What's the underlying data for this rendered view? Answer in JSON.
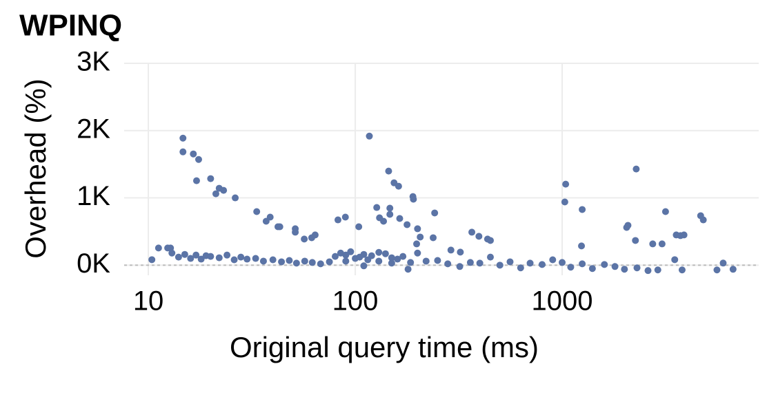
{
  "chart_data": {
    "type": "scatter",
    "title": "WPINQ",
    "x_label": "Original query time (ms)",
    "y_label": "Overhead (%)",
    "xscale": "log",
    "xlim": [
      7.64,
      8913
    ],
    "xticks": [
      10,
      100,
      1000
    ],
    "ylim": [
      -150,
      3000
    ],
    "yticks": [
      {
        "value": 0,
        "label": "0K"
      },
      {
        "value": 1000,
        "label": "1K"
      },
      {
        "value": 2000,
        "label": "2K"
      },
      {
        "value": 3000,
        "label": "3K"
      }
    ],
    "grid": true,
    "reference_line": 0,
    "color": "#5b74a6",
    "x": [
      14.7,
      14.7,
      16.5,
      17.5,
      17.1,
      20,
      21.2,
      22,
      23.1,
      26.3,
      117,
      145,
      154,
      162,
      190,
      191,
      127,
      147,
      147,
      242,
      33.4,
      38.8,
      37.1,
      42.3,
      43.2,
      51.3,
      51.3,
      56.7,
      61.6,
      64,
      82.5,
      89.6,
      104,
      137,
      131,
      164,
      178,
      200,
      206,
      198,
      238,
      366,
      396,
      436,
      450,
      290,
      322,
      1040,
      1030,
      1250,
      1240,
      2280,
      2050,
      2080,
      2260,
      3160,
      3040,
      2740,
      3560,
      3730,
      3880,
      4670,
      4810,
      3500,
      10.4,
      11.2,
      12.4,
      12.8,
      6000,
      6700,
      5600,
      3800,
      2900,
      13,
      14,
      15,
      16,
      17,
      18,
      19,
      20,
      22,
      24,
      26,
      28,
      30,
      33,
      36,
      40,
      44,
      48,
      52,
      57,
      62,
      68,
      75,
      80,
      85,
      90,
      95,
      100,
      105,
      110,
      115,
      120,
      130,
      140,
      150,
      160,
      170,
      185,
      200,
      220,
      250,
      280,
      320,
      360,
      400,
      450,
      500,
      560,
      630,
      700,
      800,
      900,
      1000,
      1100,
      1250,
      1400,
      1600,
      1800,
      2000,
      2300,
      2600,
      90,
      110,
      130,
      150,
      180
    ],
    "values": [
      1888,
      1684,
      1653,
      1571,
      1255,
      1286,
      1061,
      1143,
      1112,
      1000,
      1918,
      1398,
      1224,
      1173,
      1020,
      980,
      857,
      847,
      755,
      776,
      796,
      714,
      653,
      571,
      571,
      541,
      490,
      388,
      408,
      449,
      673,
      714,
      571,
      653,
      704,
      694,
      602,
      541,
      418,
      316,
      408,
      490,
      429,
      388,
      367,
      224,
      194,
      1204,
      939,
      827,
      286,
      1429,
      561,
      592,
      367,
      796,
      316,
      316,
      449,
      439,
      449,
      735,
      673,
      82,
      82,
      255,
      255,
      255,
      31,
      -61,
      -71,
      -71,
      -71,
      180,
      120,
      160,
      100,
      150,
      90,
      140,
      130,
      110,
      150,
      80,
      120,
      90,
      100,
      60,
      80,
      50,
      70,
      30,
      60,
      40,
      20,
      50,
      130,
      180,
      150,
      200,
      100,
      120,
      160,
      80,
      140,
      60,
      170,
      110,
      90,
      130,
      40,
      180,
      60,
      70,
      20,
      -20,
      40,
      30,
      120,
      0,
      50,
      -40,
      30,
      10,
      80,
      40,
      -30,
      20,
      -50,
      10,
      -20,
      -60,
      -40,
      -80,
      60,
      -10,
      190,
      30,
      -60
    ]
  }
}
